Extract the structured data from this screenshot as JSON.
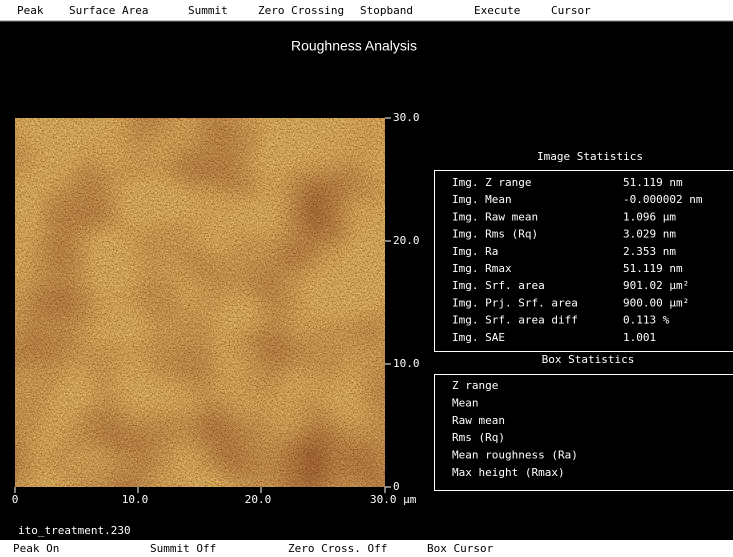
{
  "menu": [
    "Peak",
    "Surface Area",
    "Summit",
    "Zero Crossing",
    "Stopband",
    "Execute",
    "Cursor"
  ],
  "title": "Roughness Analysis",
  "image": {
    "x_ticks": [
      "0",
      "10.0",
      "20.0",
      "30.0 µm"
    ],
    "y_ticks": [
      "30.0",
      "20.0",
      "10.0",
      "0"
    ],
    "filename": "ito_treatment.230"
  },
  "image_statistics": {
    "title": "Image Statistics",
    "rows": [
      [
        "Img. Z range",
        "51.119 nm"
      ],
      [
        "Img. Mean",
        "-0.000002 nm"
      ],
      [
        "Img. Raw mean",
        "1.096 µm"
      ],
      [
        "Img. Rms (Rq)",
        "3.029 nm"
      ],
      [
        "Img. Ra",
        "2.353 nm"
      ],
      [
        "Img. Rmax",
        "51.119 nm"
      ],
      [
        "Img. Srf. area",
        "901.02 µm²"
      ],
      [
        "Img. Prj. Srf. area",
        "900.00 µm²"
      ],
      [
        "Img. Srf. area diff",
        "0.113 %"
      ],
      [
        "Img. SAE",
        "1.001"
      ]
    ]
  },
  "box_statistics": {
    "title": "Box Statistics",
    "rows": [
      "Z range",
      "Mean",
      "Raw mean",
      "Rms (Rq)",
      "Mean roughness (Ra)",
      "Max height (Rmax)"
    ]
  },
  "status_bar": [
    "Peak On",
    "Summit Off",
    "Zero Cross. Off",
    "Box Cursor"
  ]
}
